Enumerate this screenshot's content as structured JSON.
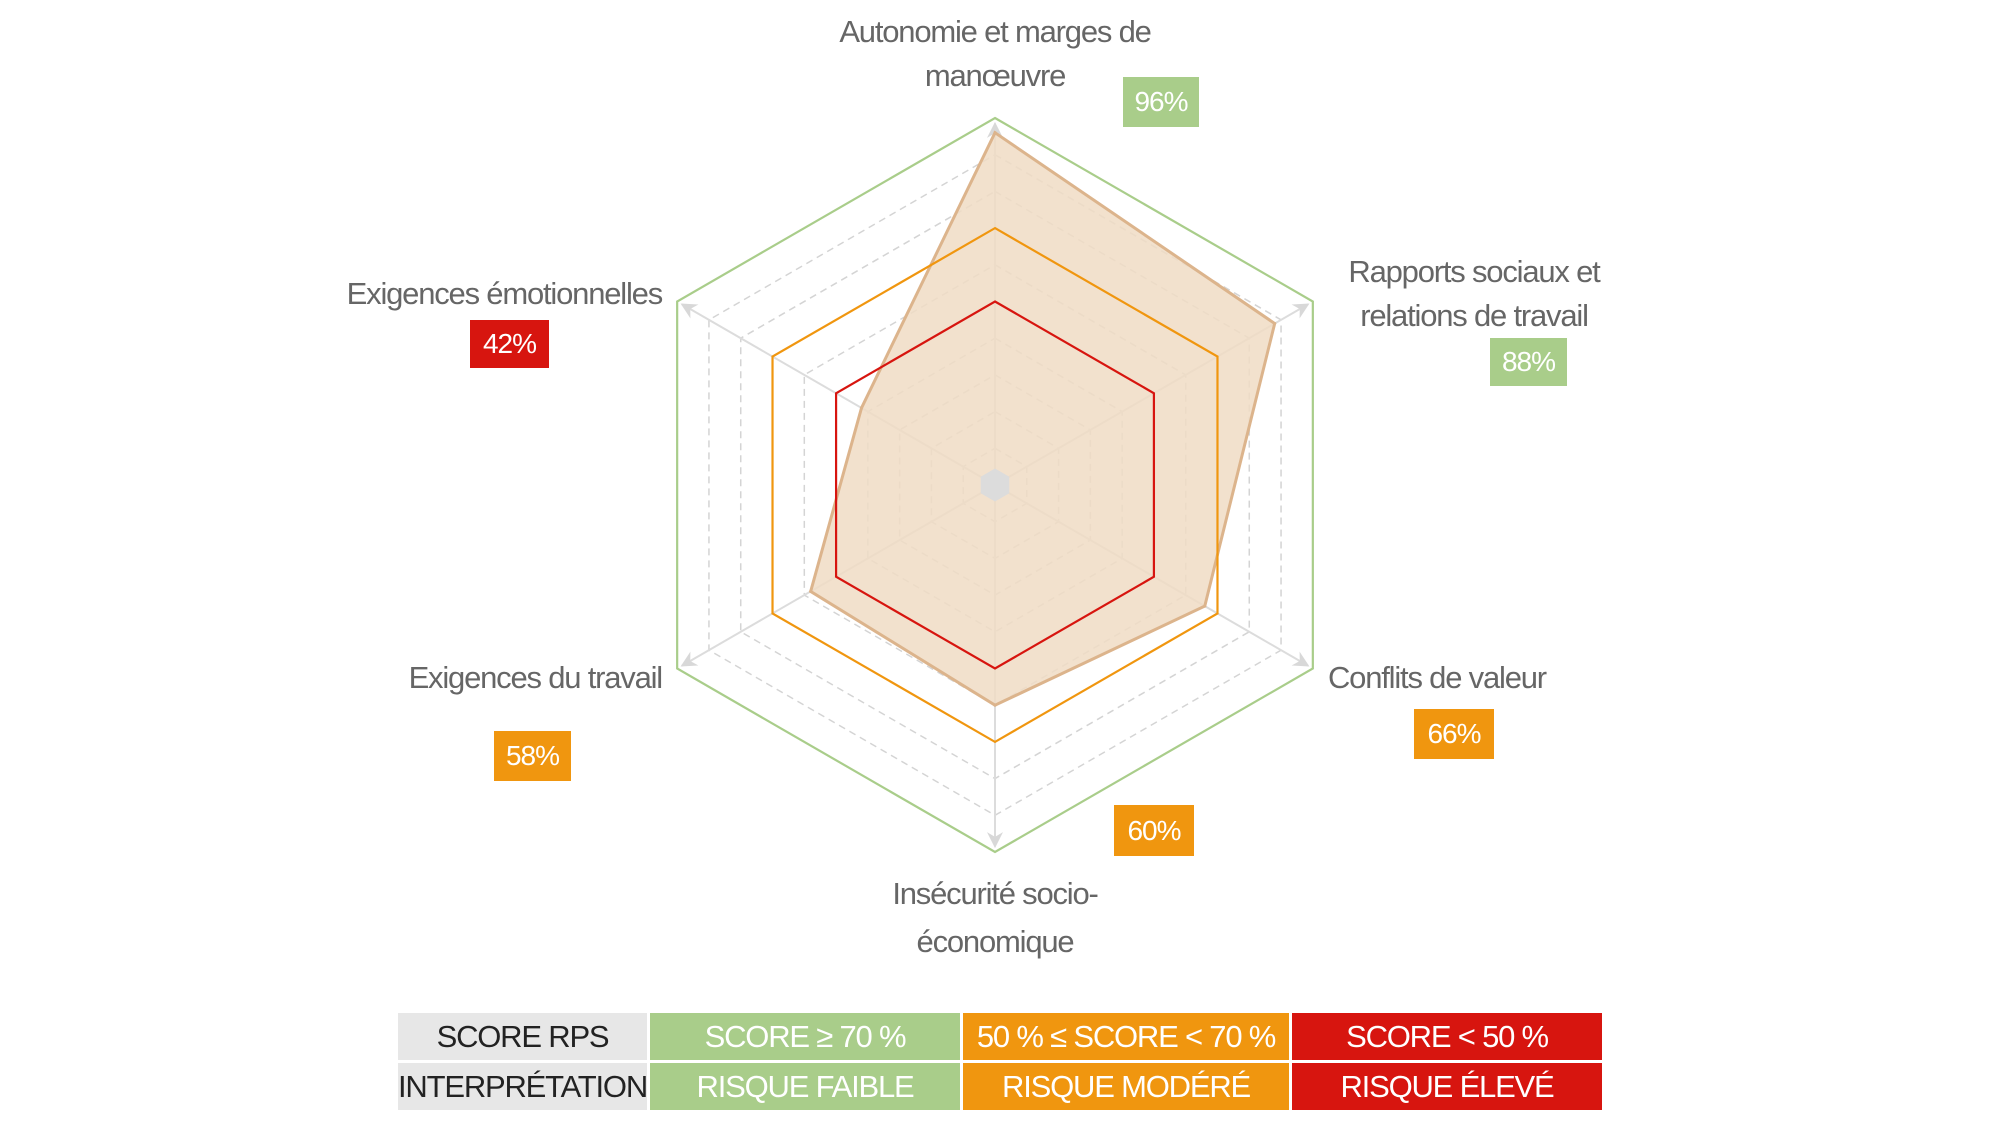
{
  "chart_data": {
    "type": "radar",
    "axes": [
      {
        "label_lines": [
          "Autonomie et marges de",
          "manœuvre"
        ],
        "value": 96,
        "value_label": "96%"
      },
      {
        "label_lines": [
          "Rapports sociaux et",
          "relations de travail"
        ],
        "value": 88,
        "value_label": "88%"
      },
      {
        "label_lines": [
          "Conflits de valeur"
        ],
        "value": 66,
        "value_label": "66%"
      },
      {
        "label_lines": [
          "Insécurité socio-",
          "économique"
        ],
        "value": 60,
        "value_label": "60%"
      },
      {
        "label_lines": [
          "Exigences du travail"
        ],
        "value": 58,
        "value_label": "58%"
      },
      {
        "label_lines": [
          "Exigences émotionnelles"
        ],
        "value": 42,
        "value_label": "42%"
      }
    ],
    "range": [
      0,
      100
    ],
    "grid_levels": [
      10,
      20,
      30,
      40,
      60,
      80,
      90
    ],
    "threshold_levels": [
      {
        "value": 50,
        "color": "#d7150f"
      },
      {
        "value": 70,
        "color": "#f0960f"
      },
      {
        "value": 100,
        "color": "#a9cd8a"
      }
    ],
    "fill_color": "#f0dcc4",
    "stroke_color": "#dcb48c"
  },
  "legend": {
    "row1": [
      "SCORE RPS",
      "SCORE ≥  70 %",
      "50 % ≤ SCORE < 70 %",
      "SCORE < 50 %"
    ],
    "row2": [
      "INTERPRÉTATION",
      "RISQUE FAIBLE",
      "RISQUE MODÉRÉ",
      "RISQUE ÉLEVÉ"
    ]
  },
  "colors": {
    "green": "#a9cd8a",
    "orange": "#f0960f",
    "red": "#d7150f"
  }
}
